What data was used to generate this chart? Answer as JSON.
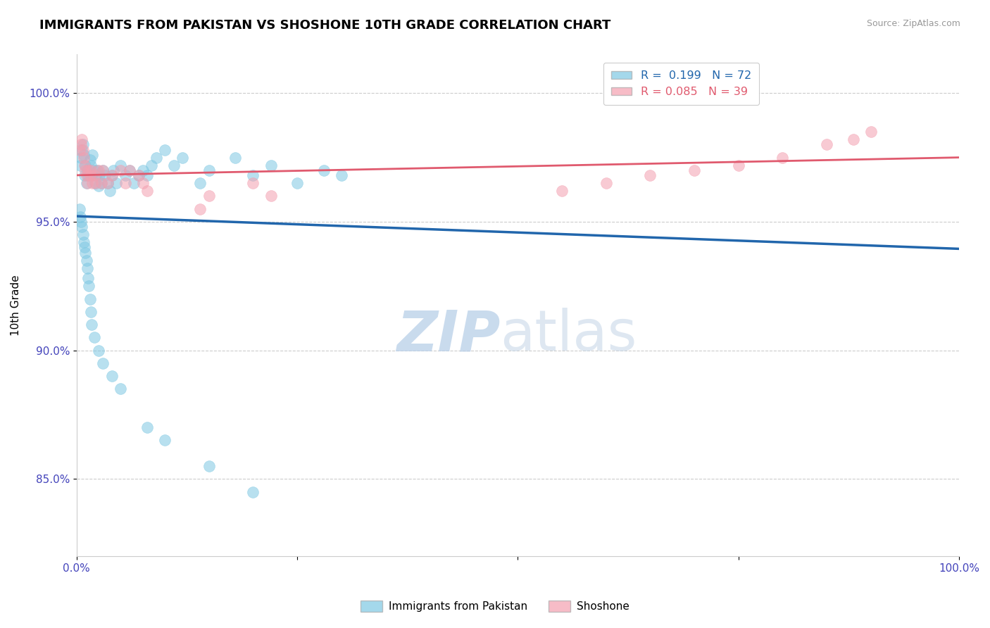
{
  "title": "IMMIGRANTS FROM PAKISTAN VS SHOSHONE 10TH GRADE CORRELATION CHART",
  "source_text": "Source: ZipAtlas.com",
  "ylabel": "10th Grade",
  "watermark_zip": "ZIP",
  "watermark_atlas": "atlas",
  "blue_label": "Immigrants from Pakistan",
  "pink_label": "Shoshone",
  "blue_R": 0.199,
  "blue_N": 72,
  "pink_R": 0.085,
  "pink_N": 39,
  "xlim": [
    0.0,
    100.0
  ],
  "ylim": [
    82.0,
    101.5
  ],
  "yticks": [
    85.0,
    90.0,
    95.0,
    100.0
  ],
  "ytick_labels": [
    "85.0%",
    "90.0%",
    "95.0%",
    "100.0%"
  ],
  "xticks": [
    0.0,
    25.0,
    50.0,
    75.0,
    100.0
  ],
  "xtick_labels": [
    "0.0%",
    "",
    "",
    "",
    "100.0%"
  ],
  "blue_color": "#7ec8e3",
  "pink_color": "#f4a0b0",
  "blue_line_color": "#2166ac",
  "pink_line_color": "#e05a6e",
  "tick_label_color": "#4444bb",
  "blue_x": [
    0.4,
    0.5,
    0.6,
    0.7,
    0.8,
    0.9,
    1.0,
    1.1,
    1.2,
    1.3,
    1.5,
    1.6,
    1.7,
    1.8,
    2.0,
    2.1,
    2.2,
    2.3,
    2.5,
    2.6,
    2.8,
    3.0,
    3.2,
    3.5,
    3.8,
    4.0,
    4.2,
    4.5,
    5.0,
    5.5,
    6.0,
    6.5,
    7.0,
    7.5,
    8.0,
    8.5,
    9.0,
    10.0,
    11.0,
    12.0,
    14.0,
    15.0,
    18.0,
    20.0,
    22.0,
    25.0,
    28.0,
    30.0,
    0.3,
    0.4,
    0.5,
    0.6,
    0.7,
    0.8,
    0.9,
    1.0,
    1.1,
    1.2,
    1.3,
    1.4,
    1.5,
    1.6,
    1.7,
    2.0,
    2.5,
    3.0,
    4.0,
    5.0,
    8.0,
    10.0,
    15.0,
    20.0
  ],
  "blue_y": [
    97.2,
    97.5,
    97.8,
    98.0,
    97.6,
    96.8,
    97.2,
    96.5,
    97.0,
    96.8,
    97.4,
    97.2,
    96.8,
    97.6,
    97.0,
    96.5,
    96.8,
    97.0,
    96.4,
    96.8,
    96.5,
    97.0,
    96.8,
    96.5,
    96.2,
    96.8,
    97.0,
    96.5,
    97.2,
    96.8,
    97.0,
    96.5,
    96.8,
    97.0,
    96.8,
    97.2,
    97.5,
    97.8,
    97.2,
    97.5,
    96.5,
    97.0,
    97.5,
    96.8,
    97.2,
    96.5,
    97.0,
    96.8,
    95.5,
    95.2,
    95.0,
    94.8,
    94.5,
    94.2,
    94.0,
    93.8,
    93.5,
    93.2,
    92.8,
    92.5,
    92.0,
    91.5,
    91.0,
    90.5,
    90.0,
    89.5,
    89.0,
    88.5,
    87.0,
    86.5,
    85.5,
    84.5
  ],
  "pink_x": [
    0.3,
    0.5,
    0.6,
    0.7,
    0.8,
    0.9,
    1.0,
    1.1,
    1.2,
    1.3,
    1.5,
    1.6,
    1.8,
    2.0,
    2.2,
    2.5,
    2.8,
    3.0,
    3.5,
    4.0,
    5.0,
    5.5,
    6.0,
    7.0,
    7.5,
    8.0,
    14.0,
    15.0,
    20.0,
    22.0,
    55.0,
    60.0,
    65.0,
    70.0,
    75.0,
    80.0,
    85.0,
    88.0,
    90.0
  ],
  "pink_y": [
    97.8,
    98.0,
    98.2,
    97.8,
    97.5,
    97.2,
    97.0,
    96.8,
    96.5,
    97.0,
    96.8,
    97.0,
    96.5,
    96.8,
    96.5,
    97.0,
    96.5,
    97.0,
    96.5,
    96.8,
    97.0,
    96.5,
    97.0,
    96.8,
    96.5,
    96.2,
    95.5,
    96.0,
    96.5,
    96.0,
    96.2,
    96.5,
    96.8,
    97.0,
    97.2,
    97.5,
    98.0,
    98.2,
    98.5
  ]
}
